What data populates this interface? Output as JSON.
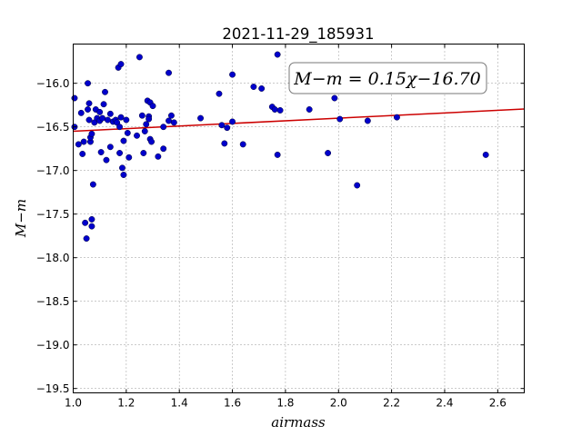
{
  "chart_data": {
    "type": "scatter",
    "title": "2021-11-29_185931",
    "xlabel": "airmass",
    "ylabel": "M−m",
    "xlim": [
      1.0,
      2.7
    ],
    "ylim": [
      -19.55,
      -15.55
    ],
    "xticks": [
      1.0,
      1.2,
      1.4,
      1.6,
      1.8,
      2.0,
      2.2,
      2.4,
      2.6
    ],
    "xtick_labels": [
      "1.0",
      "1.2",
      "1.4",
      "1.6",
      "1.8",
      "2.0",
      "2.2",
      "2.4",
      "2.6"
    ],
    "yticks": [
      -16.0,
      -16.5,
      -17.0,
      -17.5,
      -18.0,
      -18.5,
      -19.0,
      -19.5
    ],
    "ytick_labels": [
      "−16.0",
      "−16.5",
      "−17.0",
      "−17.5",
      "−18.0",
      "−18.5",
      "−19.0",
      "−19.5"
    ],
    "grid": true,
    "annotation": "M−m = 0.15χ−16.70",
    "fit": {
      "slope": 0.15,
      "intercept": -16.7,
      "color": "#cc0000"
    },
    "marker_color": "#0000cc",
    "x": [
      1.005,
      1.005,
      1.02,
      1.03,
      1.035,
      1.04,
      1.045,
      1.05,
      1.055,
      1.055,
      1.06,
      1.06,
      1.065,
      1.065,
      1.07,
      1.07,
      1.07,
      1.075,
      1.08,
      1.085,
      1.09,
      1.1,
      1.1,
      1.105,
      1.11,
      1.115,
      1.12,
      1.125,
      1.13,
      1.14,
      1.14,
      1.15,
      1.16,
      1.165,
      1.17,
      1.175,
      1.175,
      1.18,
      1.18,
      1.185,
      1.19,
      1.19,
      1.2,
      1.205,
      1.21,
      1.24,
      1.25,
      1.26,
      1.265,
      1.27,
      1.275,
      1.28,
      1.285,
      1.285,
      1.29,
      1.29,
      1.295,
      1.3,
      1.32,
      1.34,
      1.34,
      1.36,
      1.36,
      1.37,
      1.38,
      1.48,
      1.55,
      1.56,
      1.57,
      1.58,
      1.6,
      1.6,
      1.64,
      1.68,
      1.71,
      1.75,
      1.76,
      1.77,
      1.77,
      1.78,
      1.89,
      1.96,
      1.985,
      2.005,
      2.07,
      2.11,
      2.22,
      2.555
    ],
    "y": [
      -16.17,
      -16.5,
      -16.7,
      -16.34,
      -16.81,
      -16.67,
      -17.6,
      -17.78,
      -16.0,
      -16.3,
      -16.42,
      -16.23,
      -16.67,
      -16.62,
      -17.56,
      -17.64,
      -16.58,
      -17.16,
      -16.45,
      -16.3,
      -16.4,
      -16.43,
      -16.33,
      -16.79,
      -16.4,
      -16.24,
      -16.1,
      -16.88,
      -16.42,
      -16.73,
      -16.35,
      -16.44,
      -16.42,
      -16.45,
      -15.82,
      -16.8,
      -16.5,
      -16.39,
      -15.78,
      -16.97,
      -17.05,
      -16.66,
      -16.42,
      -16.57,
      -16.85,
      -16.6,
      -15.7,
      -16.37,
      -16.8,
      -16.55,
      -16.47,
      -16.2,
      -16.38,
      -16.41,
      -16.22,
      -16.64,
      -16.67,
      -16.26,
      -16.84,
      -16.75,
      -16.5,
      -15.88,
      -16.43,
      -16.37,
      -16.45,
      -16.4,
      -16.12,
      -16.48,
      -16.69,
      -16.51,
      -15.9,
      -16.44,
      -16.7,
      -16.04,
      -16.06,
      -16.27,
      -16.3,
      -16.82,
      -15.67,
      -16.31,
      -16.3,
      -16.8,
      -16.17,
      -16.41,
      -17.17,
      -16.43,
      -16.39,
      -16.82
    ]
  }
}
